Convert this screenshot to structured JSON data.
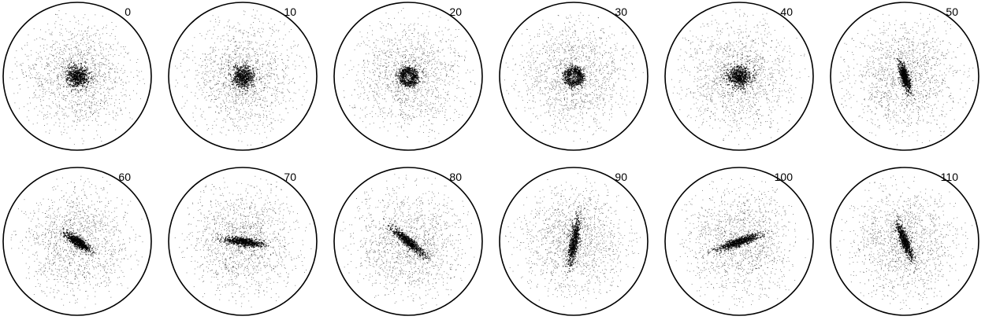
{
  "figure": {
    "panels": [
      {
        "label": "0",
        "core": {
          "shape": "blob",
          "angle_deg": 0,
          "elongation": 1.0
        }
      },
      {
        "label": "10",
        "core": {
          "shape": "blob",
          "angle_deg": 0,
          "elongation": 1.0
        }
      },
      {
        "label": "20",
        "core": {
          "shape": "ring",
          "angle_deg": 0,
          "elongation": 1.0
        }
      },
      {
        "label": "30",
        "core": {
          "shape": "ring",
          "angle_deg": 0,
          "elongation": 1.0
        }
      },
      {
        "label": "40",
        "core": {
          "shape": "blob",
          "angle_deg": 0,
          "elongation": 1.1
        }
      },
      {
        "label": "50",
        "core": {
          "shape": "bar",
          "angle_deg": 75,
          "elongation": 2.3
        }
      },
      {
        "label": "60",
        "core": {
          "shape": "bar",
          "angle_deg": 35,
          "elongation": 2.2
        }
      },
      {
        "label": "70",
        "core": {
          "shape": "bar",
          "angle_deg": 8,
          "elongation": 3.0
        }
      },
      {
        "label": "80",
        "core": {
          "shape": "bar",
          "angle_deg": 40,
          "elongation": 3.2
        }
      },
      {
        "label": "90",
        "core": {
          "shape": "bar",
          "angle_deg": 100,
          "elongation": 3.5
        }
      },
      {
        "label": "100",
        "core": {
          "shape": "bar",
          "angle_deg": -18,
          "elongation": 3.4
        }
      },
      {
        "label": "110",
        "core": {
          "shape": "bar",
          "angle_deg": 70,
          "elongation": 3.0
        }
      }
    ],
    "colors": {
      "background": "#ffffff",
      "ink": "#000000"
    }
  }
}
